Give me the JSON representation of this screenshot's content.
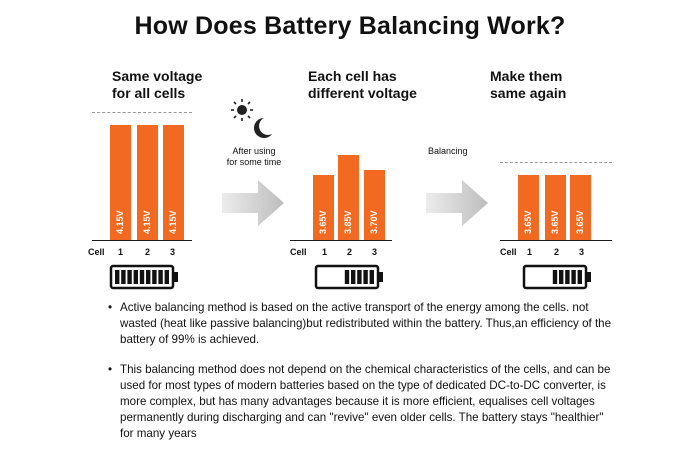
{
  "title": "How Does Battery Balancing Work?",
  "panels": [
    {
      "heading_line1": "Same voltage",
      "heading_line2": "for all cells",
      "voltages": [
        "4.15V",
        "4.15V",
        "4.15V"
      ],
      "battery_fill": 1.0
    },
    {
      "heading_line1": "Each cell has",
      "heading_line2": "different voltage",
      "voltages": [
        "3.65V",
        "3.85V",
        "3.70V"
      ],
      "battery_fill": 0.6
    },
    {
      "heading_line1": "Make them",
      "heading_line2": "same again",
      "voltages": [
        "3.65V",
        "3.65V",
        "3.65V"
      ],
      "battery_fill": 0.6
    }
  ],
  "cell_label": "Cell",
  "cell_numbers": [
    "1",
    "2",
    "3"
  ],
  "after_using_line1": "After using",
  "after_using_line2": "for some time",
  "balancing_label": "Balancing",
  "bullets": [
    "Active balancing method is based on the active transport of the energy among the cells. not wasted (heat like passive balancing)but redistributed within the battery. Thus,an efficiency of the battery of 99% is achieved.",
    "This balancing method does not depend on the chemical characteristics of the cells, and can be used for most types of modern batteries  based on the type of dedicated DC-to-DC converter, is more complex, but has many advantages because it is more efficient, equalises cell voltages permanently during discharging and can \"revive\" even older cells. The battery stays \"healthier\" for many years"
  ],
  "colors": {
    "bar": "#f26a21",
    "arrow": "#c8c8c8"
  },
  "icons": [
    "sun-icon",
    "moon-icon",
    "battery-icon",
    "arrow-right-icon"
  ]
}
